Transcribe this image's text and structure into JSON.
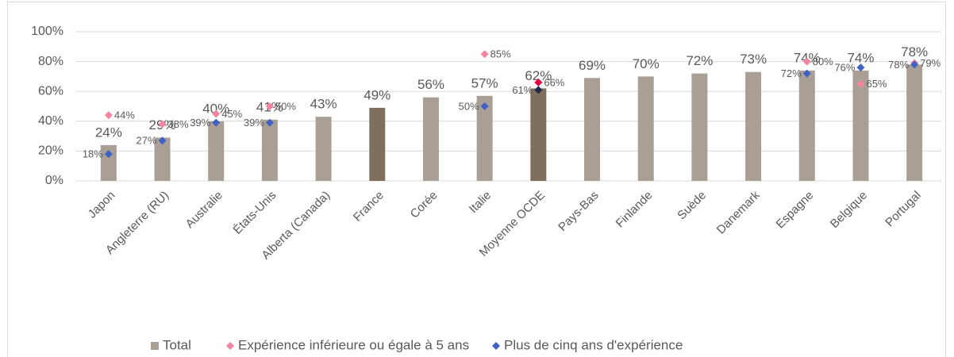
{
  "chart_data": {
    "type": "bar",
    "categories": [
      "Japon",
      "Angleterre (RU)",
      "Australie",
      "États-Unis",
      "Alberta (Canada)",
      "France",
      "Corée",
      "Italie",
      "Moyenne OCDE",
      "Pays-Bas",
      "Finlande",
      "Suède",
      "Danemark",
      "Espagne",
      "Belgique",
      "Portugal"
    ],
    "ylim": [
      0,
      100
    ],
    "yticks": [
      {
        "value": 0,
        "label": "0%"
      },
      {
        "value": 20,
        "label": "20%"
      },
      {
        "value": 40,
        "label": "40%"
      },
      {
        "value": 60,
        "label": "60%"
      },
      {
        "value": 80,
        "label": "80%"
      },
      {
        "value": 100,
        "label": "100%"
      }
    ],
    "grid": true,
    "legend": "bottom",
    "series": [
      {
        "name": "Total",
        "type": "bar",
        "color": "#a99f95",
        "colors": [
          "#a99f95",
          "#a99f95",
          "#a99f95",
          "#a99f95",
          "#a99f95",
          "#7f705e",
          "#a99f95",
          "#a99f95",
          "#7f705e",
          "#a99f95",
          "#a99f95",
          "#a99f95",
          "#a99f95",
          "#a99f95",
          "#a99f95",
          "#a99f95"
        ],
        "values": [
          24,
          29,
          40,
          41,
          43,
          49,
          56,
          57,
          62,
          69,
          70,
          72,
          73,
          74,
          74,
          78
        ],
        "value_labels": [
          "24%",
          "29%",
          "40%",
          "41%",
          "43%",
          "49%",
          "56%",
          "57%",
          "62%",
          "69%",
          "70%",
          "72%",
          "73%",
          "74%",
          "74%",
          "78%"
        ]
      },
      {
        "name": "Expérience inférieure ou égale à 5 ans",
        "type": "scatter",
        "color": "#f4849f",
        "colors": [
          "#f4849f",
          "#f4849f",
          "#f4849f",
          "#f4849f",
          "#f4849f",
          "#f4849f",
          "#f4849f",
          "#f4849f",
          "#e8003d",
          "#f4849f",
          "#f4849f",
          "#f4849f",
          "#f4849f",
          "#f4849f",
          "#f4849f",
          "#f4849f"
        ],
        "values": [
          44,
          38,
          45,
          50,
          null,
          null,
          null,
          85,
          66,
          null,
          null,
          null,
          null,
          80,
          65,
          79
        ],
        "value_labels": [
          "44%",
          "38%",
          "45%",
          "50%",
          null,
          null,
          null,
          "85%",
          "66%",
          null,
          null,
          null,
          null,
          "80%",
          "65%",
          "79%"
        ]
      },
      {
        "name": "Plus de cinq ans d'expérience",
        "type": "scatter",
        "color": "#3f63c4",
        "colors": [
          "#3f63c4",
          "#3f63c4",
          "#3f63c4",
          "#3f63c4",
          "#3f63c4",
          "#3f63c4",
          "#3f63c4",
          "#3f63c4",
          "#1c2a4a",
          "#3f63c4",
          "#3f63c4",
          "#3f63c4",
          "#3f63c4",
          "#3f63c4",
          "#3f63c4",
          "#3f63c4"
        ],
        "values": [
          18,
          27,
          39,
          39,
          null,
          null,
          null,
          50,
          61,
          null,
          null,
          null,
          null,
          72,
          76,
          78
        ],
        "value_labels": [
          "18%",
          "27%",
          "39%",
          "39%",
          null,
          null,
          null,
          "50%",
          "61%",
          null,
          null,
          null,
          null,
          "72%",
          "76%",
          "78%"
        ]
      }
    ]
  }
}
